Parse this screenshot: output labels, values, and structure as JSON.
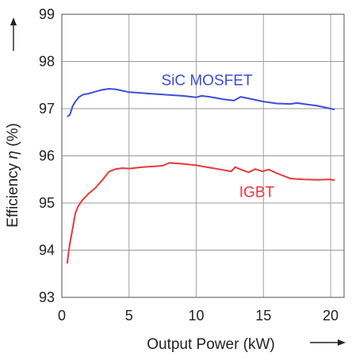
{
  "chart_data": {
    "type": "line",
    "title": "",
    "xlabel": "Output Power (kW)",
    "ylabel_text": "Efficiency ",
    "ylabel_symbol": "η",
    "ylabel_unit": " (%)",
    "xlim": [
      0,
      21
    ],
    "ylim": [
      93,
      99
    ],
    "xticks": [
      0,
      5,
      10,
      15,
      20
    ],
    "yticks": [
      93,
      94,
      95,
      96,
      97,
      98,
      99
    ],
    "xtick_labels": [
      "0",
      "5",
      "10",
      "15",
      "20"
    ],
    "ytick_labels": [
      "93",
      "94",
      "95",
      "96",
      "97",
      "98",
      "99"
    ],
    "grid": true,
    "legend": "inline",
    "series": [
      {
        "name": "SiC MOSFET",
        "color": "#3a4fd8",
        "label_at": [
          7.4,
          97.5
        ],
        "x": [
          0.4,
          0.6,
          0.8,
          1.0,
          1.3,
          1.6,
          2.0,
          2.5,
          3.0,
          3.5,
          4.0,
          4.5,
          5.0,
          5.5,
          6.0,
          7.0,
          8.0,
          9.0,
          10.0,
          10.4,
          11.0,
          12.0,
          12.8,
          13.3,
          14.0,
          15.0,
          16.0,
          17.0,
          17.5,
          18.0,
          19.0,
          20.0,
          20.3
        ],
        "y": [
          96.83,
          96.87,
          97.05,
          97.15,
          97.25,
          97.3,
          97.32,
          97.36,
          97.4,
          97.42,
          97.41,
          97.38,
          97.35,
          97.34,
          97.33,
          97.31,
          97.29,
          97.27,
          97.24,
          97.27,
          97.25,
          97.2,
          97.17,
          97.25,
          97.21,
          97.15,
          97.11,
          97.1,
          97.12,
          97.1,
          97.06,
          97.0,
          96.98
        ]
      },
      {
        "name": "IGBT",
        "color": "#e8383d",
        "label_at": [
          13.2,
          95.13
        ],
        "x": [
          0.4,
          0.5,
          0.6,
          0.8,
          1.0,
          1.2,
          1.5,
          2.0,
          2.5,
          3.0,
          3.5,
          4.0,
          4.5,
          5.0,
          6.0,
          7.0,
          7.5,
          8.0,
          9.0,
          10.0,
          11.0,
          12.0,
          12.6,
          12.9,
          13.4,
          13.9,
          14.4,
          14.9,
          15.4,
          16.0,
          17.0,
          18.0,
          19.0,
          20.0,
          20.3
        ],
        "y": [
          93.72,
          93.95,
          94.15,
          94.45,
          94.78,
          94.92,
          95.05,
          95.2,
          95.32,
          95.48,
          95.66,
          95.72,
          95.74,
          95.73,
          95.76,
          95.78,
          95.79,
          95.85,
          95.83,
          95.8,
          95.75,
          95.7,
          95.67,
          95.76,
          95.7,
          95.65,
          95.72,
          95.67,
          95.71,
          95.63,
          95.52,
          95.5,
          95.49,
          95.5,
          95.48
        ]
      }
    ]
  }
}
